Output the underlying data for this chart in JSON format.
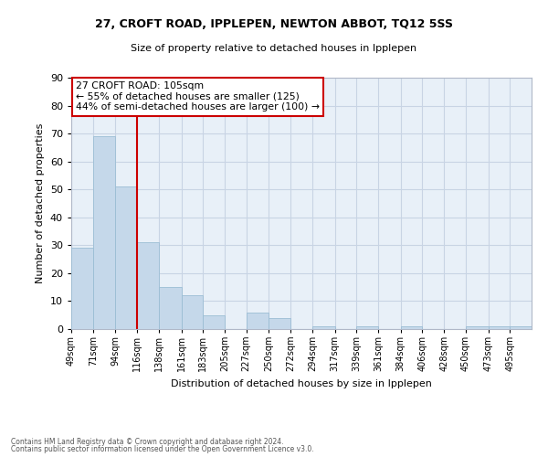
{
  "title1": "27, CROFT ROAD, IPPLEPEN, NEWTON ABBOT, TQ12 5SS",
  "title2": "Size of property relative to detached houses in Ipplepen",
  "xlabel": "Distribution of detached houses by size in Ipplepen",
  "ylabel": "Number of detached properties",
  "footer1": "Contains HM Land Registry data © Crown copyright and database right 2024.",
  "footer2": "Contains public sector information licensed under the Open Government Licence v3.0.",
  "annotation_line1": "27 CROFT ROAD: 105sqm",
  "annotation_line2": "← 55% of detached houses are smaller (125)",
  "annotation_line3": "44% of semi-detached houses are larger (100) →",
  "property_size": 105,
  "bar_color": "#c5d8ea",
  "bar_edge_color": "#9bbdd4",
  "vline_color": "#cc0000",
  "annotation_box_edge": "#cc0000",
  "background_color": "#ffffff",
  "plot_bg_color": "#e8f0f8",
  "grid_color": "#c8d4e4",
  "categories": [
    "49sqm",
    "71sqm",
    "94sqm",
    "116sqm",
    "138sqm",
    "161sqm",
    "183sqm",
    "205sqm",
    "227sqm",
    "250sqm",
    "272sqm",
    "294sqm",
    "317sqm",
    "339sqm",
    "361sqm",
    "384sqm",
    "406sqm",
    "428sqm",
    "450sqm",
    "473sqm",
    "495sqm"
  ],
  "bin_edges": [
    49,
    71,
    94,
    116,
    138,
    161,
    183,
    205,
    227,
    250,
    272,
    294,
    317,
    339,
    361,
    384,
    406,
    428,
    450,
    473,
    495,
    517
  ],
  "values": [
    29,
    69,
    51,
    31,
    15,
    12,
    5,
    0,
    6,
    4,
    0,
    1,
    0,
    1,
    0,
    1,
    0,
    0,
    1,
    1,
    1
  ],
  "ylim": [
    0,
    90
  ],
  "yticks": [
    0,
    10,
    20,
    30,
    40,
    50,
    60,
    70,
    80,
    90
  ]
}
